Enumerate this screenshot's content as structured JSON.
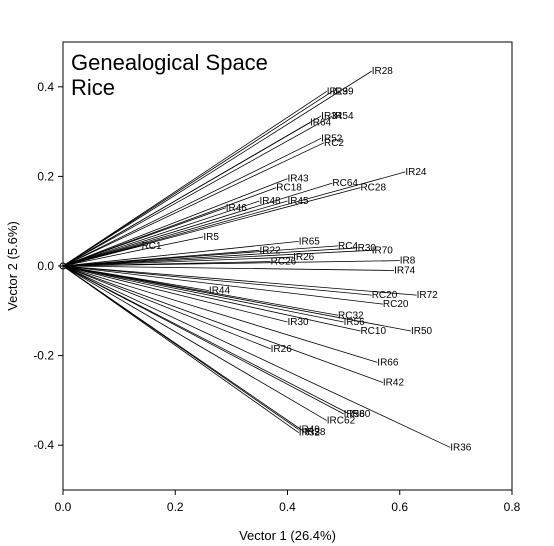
{
  "chart_data": {
    "type": "scatter",
    "title_lines": [
      "Genealogical Space",
      "Rice"
    ],
    "xlabel": "Vector 1 (26.4%)",
    "ylabel": "Vector 2 (5.6%)",
    "xlim": [
      0,
      0.8
    ],
    "ylim": [
      -0.5,
      0.5
    ],
    "xticks": [
      "0.0",
      "0.2",
      "0.4",
      "0.6",
      "0.8"
    ],
    "xtick_values": [
      0,
      0.2,
      0.4,
      0.6,
      0.8
    ],
    "yticks": [
      "0.4",
      "0.2",
      "0.0",
      "-0.2",
      "-0.4"
    ],
    "ytick_values": [
      0.4,
      0.2,
      0,
      -0.2,
      -0.4
    ],
    "points": [
      {
        "label": "IR28",
        "x": 0.55,
        "y": 0.435
      },
      {
        "label": "IR29",
        "x": 0.47,
        "y": 0.39
      },
      {
        "label": "IR39",
        "x": 0.48,
        "y": 0.39
      },
      {
        "label": "IR34",
        "x": 0.46,
        "y": 0.335
      },
      {
        "label": "IR54",
        "x": 0.48,
        "y": 0.335
      },
      {
        "label": "IR64",
        "x": 0.44,
        "y": 0.32
      },
      {
        "label": "IR52",
        "x": 0.46,
        "y": 0.285
      },
      {
        "label": "RC2",
        "x": 0.465,
        "y": 0.275
      },
      {
        "label": "IR24",
        "x": 0.61,
        "y": 0.21
      },
      {
        "label": "IR43",
        "x": 0.4,
        "y": 0.195
      },
      {
        "label": "RC64",
        "x": 0.48,
        "y": 0.185
      },
      {
        "label": "RC28",
        "x": 0.53,
        "y": 0.175
      },
      {
        "label": "RC18",
        "x": 0.38,
        "y": 0.175
      },
      {
        "label": "IR48",
        "x": 0.35,
        "y": 0.145
      },
      {
        "label": "IR45",
        "x": 0.4,
        "y": 0.145
      },
      {
        "label": "IR46",
        "x": 0.29,
        "y": 0.13
      },
      {
        "label": "IR5",
        "x": 0.25,
        "y": 0.065
      },
      {
        "label": "RC1",
        "x": 0.14,
        "y": 0.045
      },
      {
        "label": "IR65",
        "x": 0.42,
        "y": 0.055
      },
      {
        "label": "RC4",
        "x": 0.49,
        "y": 0.045
      },
      {
        "label": "IR30",
        "x": 0.52,
        "y": 0.04
      },
      {
        "label": "IR70",
        "x": 0.55,
        "y": 0.035
      },
      {
        "label": "IR22",
        "x": 0.35,
        "y": 0.035
      },
      {
        "label": "IR26",
        "x": 0.41,
        "y": 0.02
      },
      {
        "label": "RC26",
        "x": 0.37,
        "y": 0.01
      },
      {
        "label": "IR8",
        "x": 0.6,
        "y": 0.012
      },
      {
        "label": "IR74",
        "x": 0.59,
        "y": -0.01
      },
      {
        "label": "IR44",
        "x": 0.26,
        "y": -0.055
      },
      {
        "label": "RC20",
        "x": 0.55,
        "y": -0.065
      },
      {
        "label": "IR72",
        "x": 0.63,
        "y": -0.065
      },
      {
        "label": "RC20",
        "x": 0.57,
        "y": -0.085
      },
      {
        "label": "RC32",
        "x": 0.49,
        "y": -0.11
      },
      {
        "label": "IR30",
        "x": 0.4,
        "y": -0.125
      },
      {
        "label": "IR56",
        "x": 0.5,
        "y": -0.125
      },
      {
        "label": "RC10",
        "x": 0.53,
        "y": -0.145
      },
      {
        "label": "IR50",
        "x": 0.62,
        "y": -0.145
      },
      {
        "label": "IR26",
        "x": 0.37,
        "y": -0.185
      },
      {
        "label": "IR66",
        "x": 0.56,
        "y": -0.215
      },
      {
        "label": "IR42",
        "x": 0.57,
        "y": -0.26
      },
      {
        "label": "IR58",
        "x": 0.5,
        "y": -0.33
      },
      {
        "label": "IR60",
        "x": 0.51,
        "y": -0.33
      },
      {
        "label": "IRC62",
        "x": 0.47,
        "y": -0.345
      },
      {
        "label": "IR40",
        "x": 0.42,
        "y": -0.365
      },
      {
        "label": "IR38",
        "x": 0.43,
        "y": -0.37
      },
      {
        "label": "IR32",
        "x": 0.42,
        "y": -0.372
      },
      {
        "label": "IR36",
        "x": 0.69,
        "y": -0.405
      }
    ]
  }
}
